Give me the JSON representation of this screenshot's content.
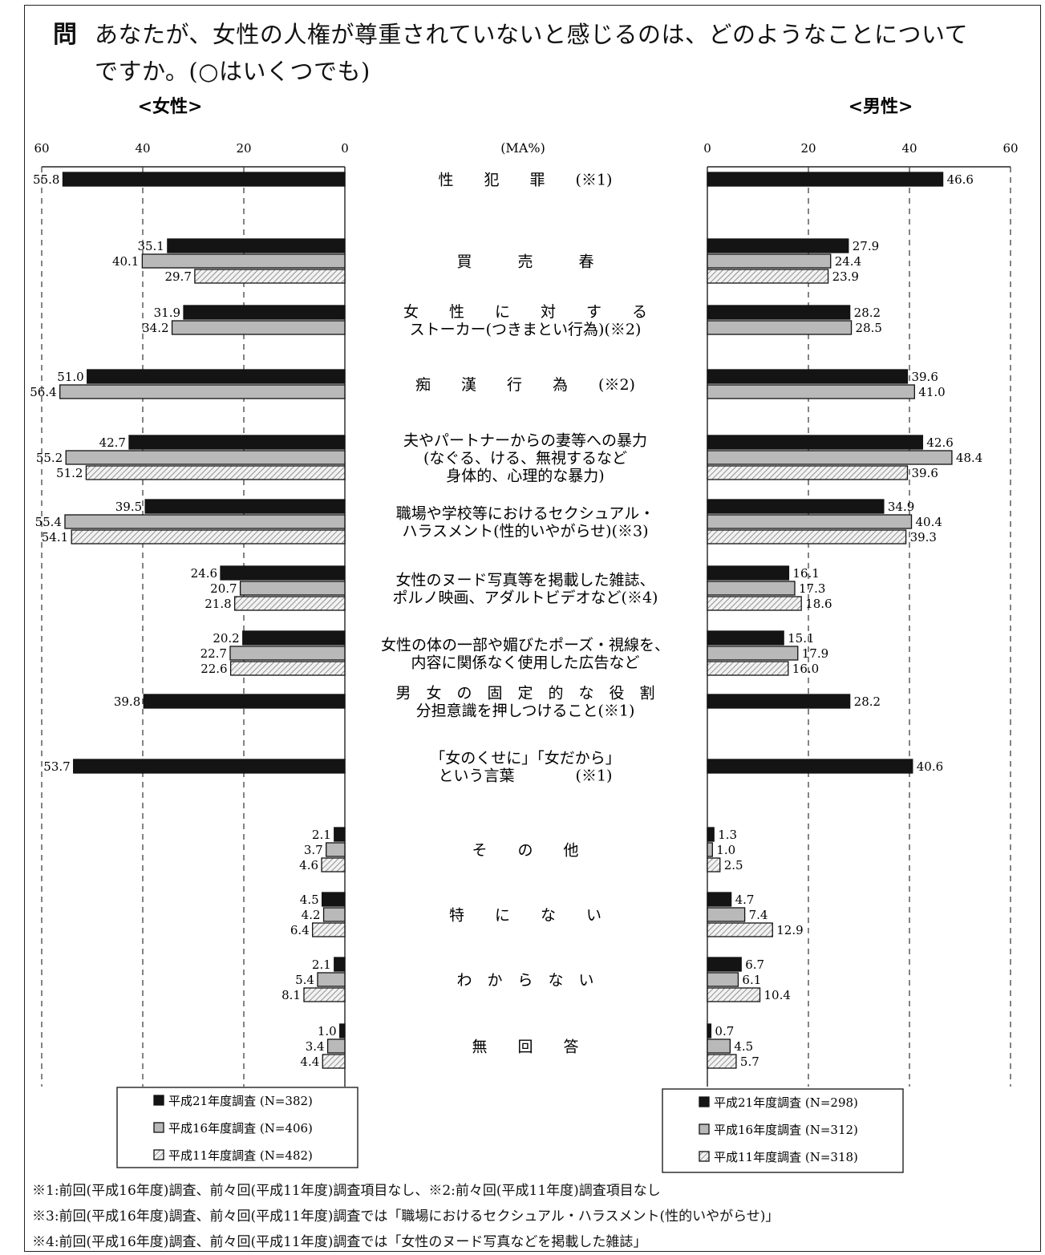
{
  "question": {
    "mark": "問",
    "line1": "あなたが、女性の人権が尊重されていないと感じるのは、どのようなことについて",
    "line2": "ですか。(○はいくつでも)"
  },
  "chart_data": {
    "type": "bar",
    "orientation": "horizontal",
    "unit_label": "(MA%)",
    "xlim": [
      0,
      60
    ],
    "xticks": [
      0,
      20,
      40,
      60
    ],
    "grid": "dashed vertical",
    "panels": {
      "female": {
        "title": "<女性>",
        "series": [
          {
            "name": "平成21年度調査 (N=382)",
            "values": [
              55.8,
              35.1,
              31.9,
              51.0,
              42.7,
              39.5,
              24.6,
              20.2,
              39.8,
              53.7,
              2.1,
              4.5,
              2.1,
              1.0
            ]
          },
          {
            "name": "平成16年度調査 (N=406)",
            "values": [
              null,
              40.1,
              34.2,
              56.4,
              55.2,
              55.4,
              20.7,
              22.7,
              null,
              null,
              3.7,
              4.2,
              5.4,
              3.4
            ]
          },
          {
            "name": "平成11年度調査 (N=482)",
            "values": [
              null,
              29.7,
              null,
              null,
              51.2,
              54.1,
              21.8,
              22.6,
              null,
              null,
              4.6,
              6.4,
              8.1,
              4.4
            ]
          }
        ]
      },
      "male": {
        "title": "<男性>",
        "series": [
          {
            "name": "平成21年度調査 (N=298)",
            "values": [
              46.6,
              27.9,
              28.2,
              39.6,
              42.6,
              34.9,
              16.1,
              15.1,
              28.2,
              40.6,
              1.3,
              4.7,
              6.7,
              0.7
            ]
          },
          {
            "name": "平成16年度調査 (N=312)",
            "values": [
              null,
              24.4,
              28.5,
              41.0,
              48.4,
              40.4,
              17.3,
              17.9,
              null,
              null,
              1.0,
              7.4,
              6.1,
              4.5
            ]
          },
          {
            "name": "平成11年度調査 (N=318)",
            "values": [
              null,
              23.9,
              null,
              null,
              39.6,
              39.3,
              18.6,
              16.0,
              null,
              null,
              2.5,
              12.9,
              10.4,
              5.7
            ]
          }
        ]
      }
    },
    "categories": [
      [
        "性　　犯　　罪　　(※1)"
      ],
      [
        "買　　　売　　　春"
      ],
      [
        "女　　性　　に　　対　　す　　る",
        "ストーカー(つきまとい行為)(※2)"
      ],
      [
        "痴　　漢　　行　　為　　(※2)"
      ],
      [
        "夫やパートナーからの妻等への暴力",
        "(なぐる、ける、無視するなど",
        "身体的、心理的な暴力)"
      ],
      [
        "職場や学校等におけるセクシュアル・",
        "ハラスメント(性的いやがらせ)(※3)"
      ],
      [
        "女性のヌード写真等を掲載した雑誌、",
        "ポルノ映画、アダルトビデオなど(※4)"
      ],
      [
        "女性の体の一部や媚びたポーズ・視線を、",
        "内容に関係なく使用した広告など"
      ],
      [
        "男　女　の　固　定　的　な　役　割",
        "分担意識を押しつけること(※1)"
      ],
      [
        "「女のくせに」「女だから」",
        "という言葉　　　　(※1)"
      ],
      [
        "そ　　の　　他"
      ],
      [
        "特　　に　　な　　い"
      ],
      [
        "わ　か　ら　な　い"
      ],
      [
        "無　　回　　答"
      ]
    ],
    "colors": {
      "h21": "#141414",
      "h16": "#b9b9b9",
      "h11_hatch": "#8c8c8c"
    }
  },
  "footnotes": [
    "※1:前回(平成16年度)調査、前々回(平成11年度)調査項目なし、※2:前々回(平成11年度)調査項目なし",
    "※3:前回(平成16年度)調査、前々回(平成11年度)調査では「職場におけるセクシュアル・ハラスメント(性的いやがらせ)」",
    "※4:前回(平成16年度)調査、前々回(平成11年度)調査では「女性のヌード写真などを掲載した雑誌」"
  ]
}
